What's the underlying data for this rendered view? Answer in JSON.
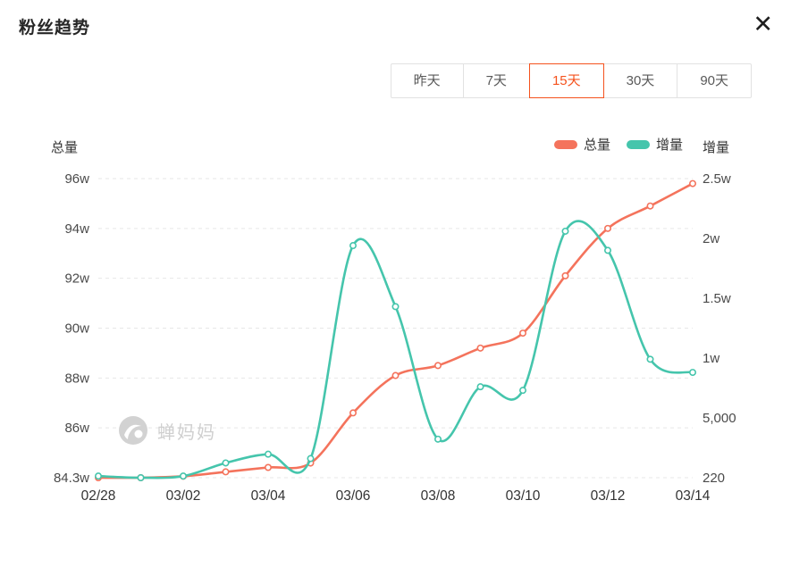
{
  "header": {
    "title": "粉丝趋势",
    "close_icon": "✕"
  },
  "colors": {
    "accent": "#F5521D",
    "total_series": "#F4735C",
    "increment_series": "#45C5AC",
    "grid": "#E7E7E7",
    "tick_text": "#4A4A4A",
    "date_text": "#333333",
    "axis_name_text": "#333333"
  },
  "range_tabs": {
    "options": [
      "昨天",
      "7天",
      "15天",
      "30天",
      "90天"
    ],
    "active": "15天"
  },
  "watermark": {
    "text": "蝉妈妈",
    "logo_icon": "chanmama-logo"
  },
  "chart_data": {
    "type": "line",
    "title": "粉丝趋势",
    "x": [
      "02/28",
      "03/01",
      "03/02",
      "03/03",
      "03/04",
      "03/05",
      "03/06",
      "03/07",
      "03/08",
      "03/09",
      "03/10",
      "03/11",
      "03/12",
      "03/13",
      "03/14"
    ],
    "x_label_every": 2,
    "grid": "dashed-horizontal",
    "left_axis": {
      "name": "总量",
      "ticks": [
        {
          "label": "96w",
          "value": 960000
        },
        {
          "label": "94w",
          "value": 940000
        },
        {
          "label": "92w",
          "value": 920000
        },
        {
          "label": "90w",
          "value": 900000
        },
        {
          "label": "88w",
          "value": 880000
        },
        {
          "label": "86w",
          "value": 860000
        },
        {
          "label": "84.3w",
          "value": 843000
        }
      ]
    },
    "right_axis": {
      "name": "增量",
      "ticks": [
        {
          "label": "2.5w",
          "value": 25000
        },
        {
          "label": "2w",
          "value": 20000
        },
        {
          "label": "1.5w",
          "value": 15000
        },
        {
          "label": "1w",
          "value": 10000
        },
        {
          "label": "5,000",
          "value": 5000
        },
        {
          "label": "220",
          "value": 220
        }
      ]
    },
    "legend": {
      "position": "top-right",
      "items": [
        "总量",
        "增量"
      ]
    },
    "series": [
      {
        "name": "总量",
        "axis": "left",
        "color": "#F4735C",
        "values": [
          843000,
          843000,
          843500,
          845000,
          846500,
          848000,
          866000,
          881000,
          885000,
          892000,
          898000,
          921000,
          940000,
          949000,
          958000
        ]
      },
      {
        "name": "增量",
        "axis": "right",
        "color": "#45C5AC",
        "values": [
          350,
          220,
          350,
          1400,
          2100,
          1750,
          19400,
          14300,
          3300,
          7600,
          7300,
          20600,
          19000,
          9900,
          8800
        ]
      }
    ]
  }
}
